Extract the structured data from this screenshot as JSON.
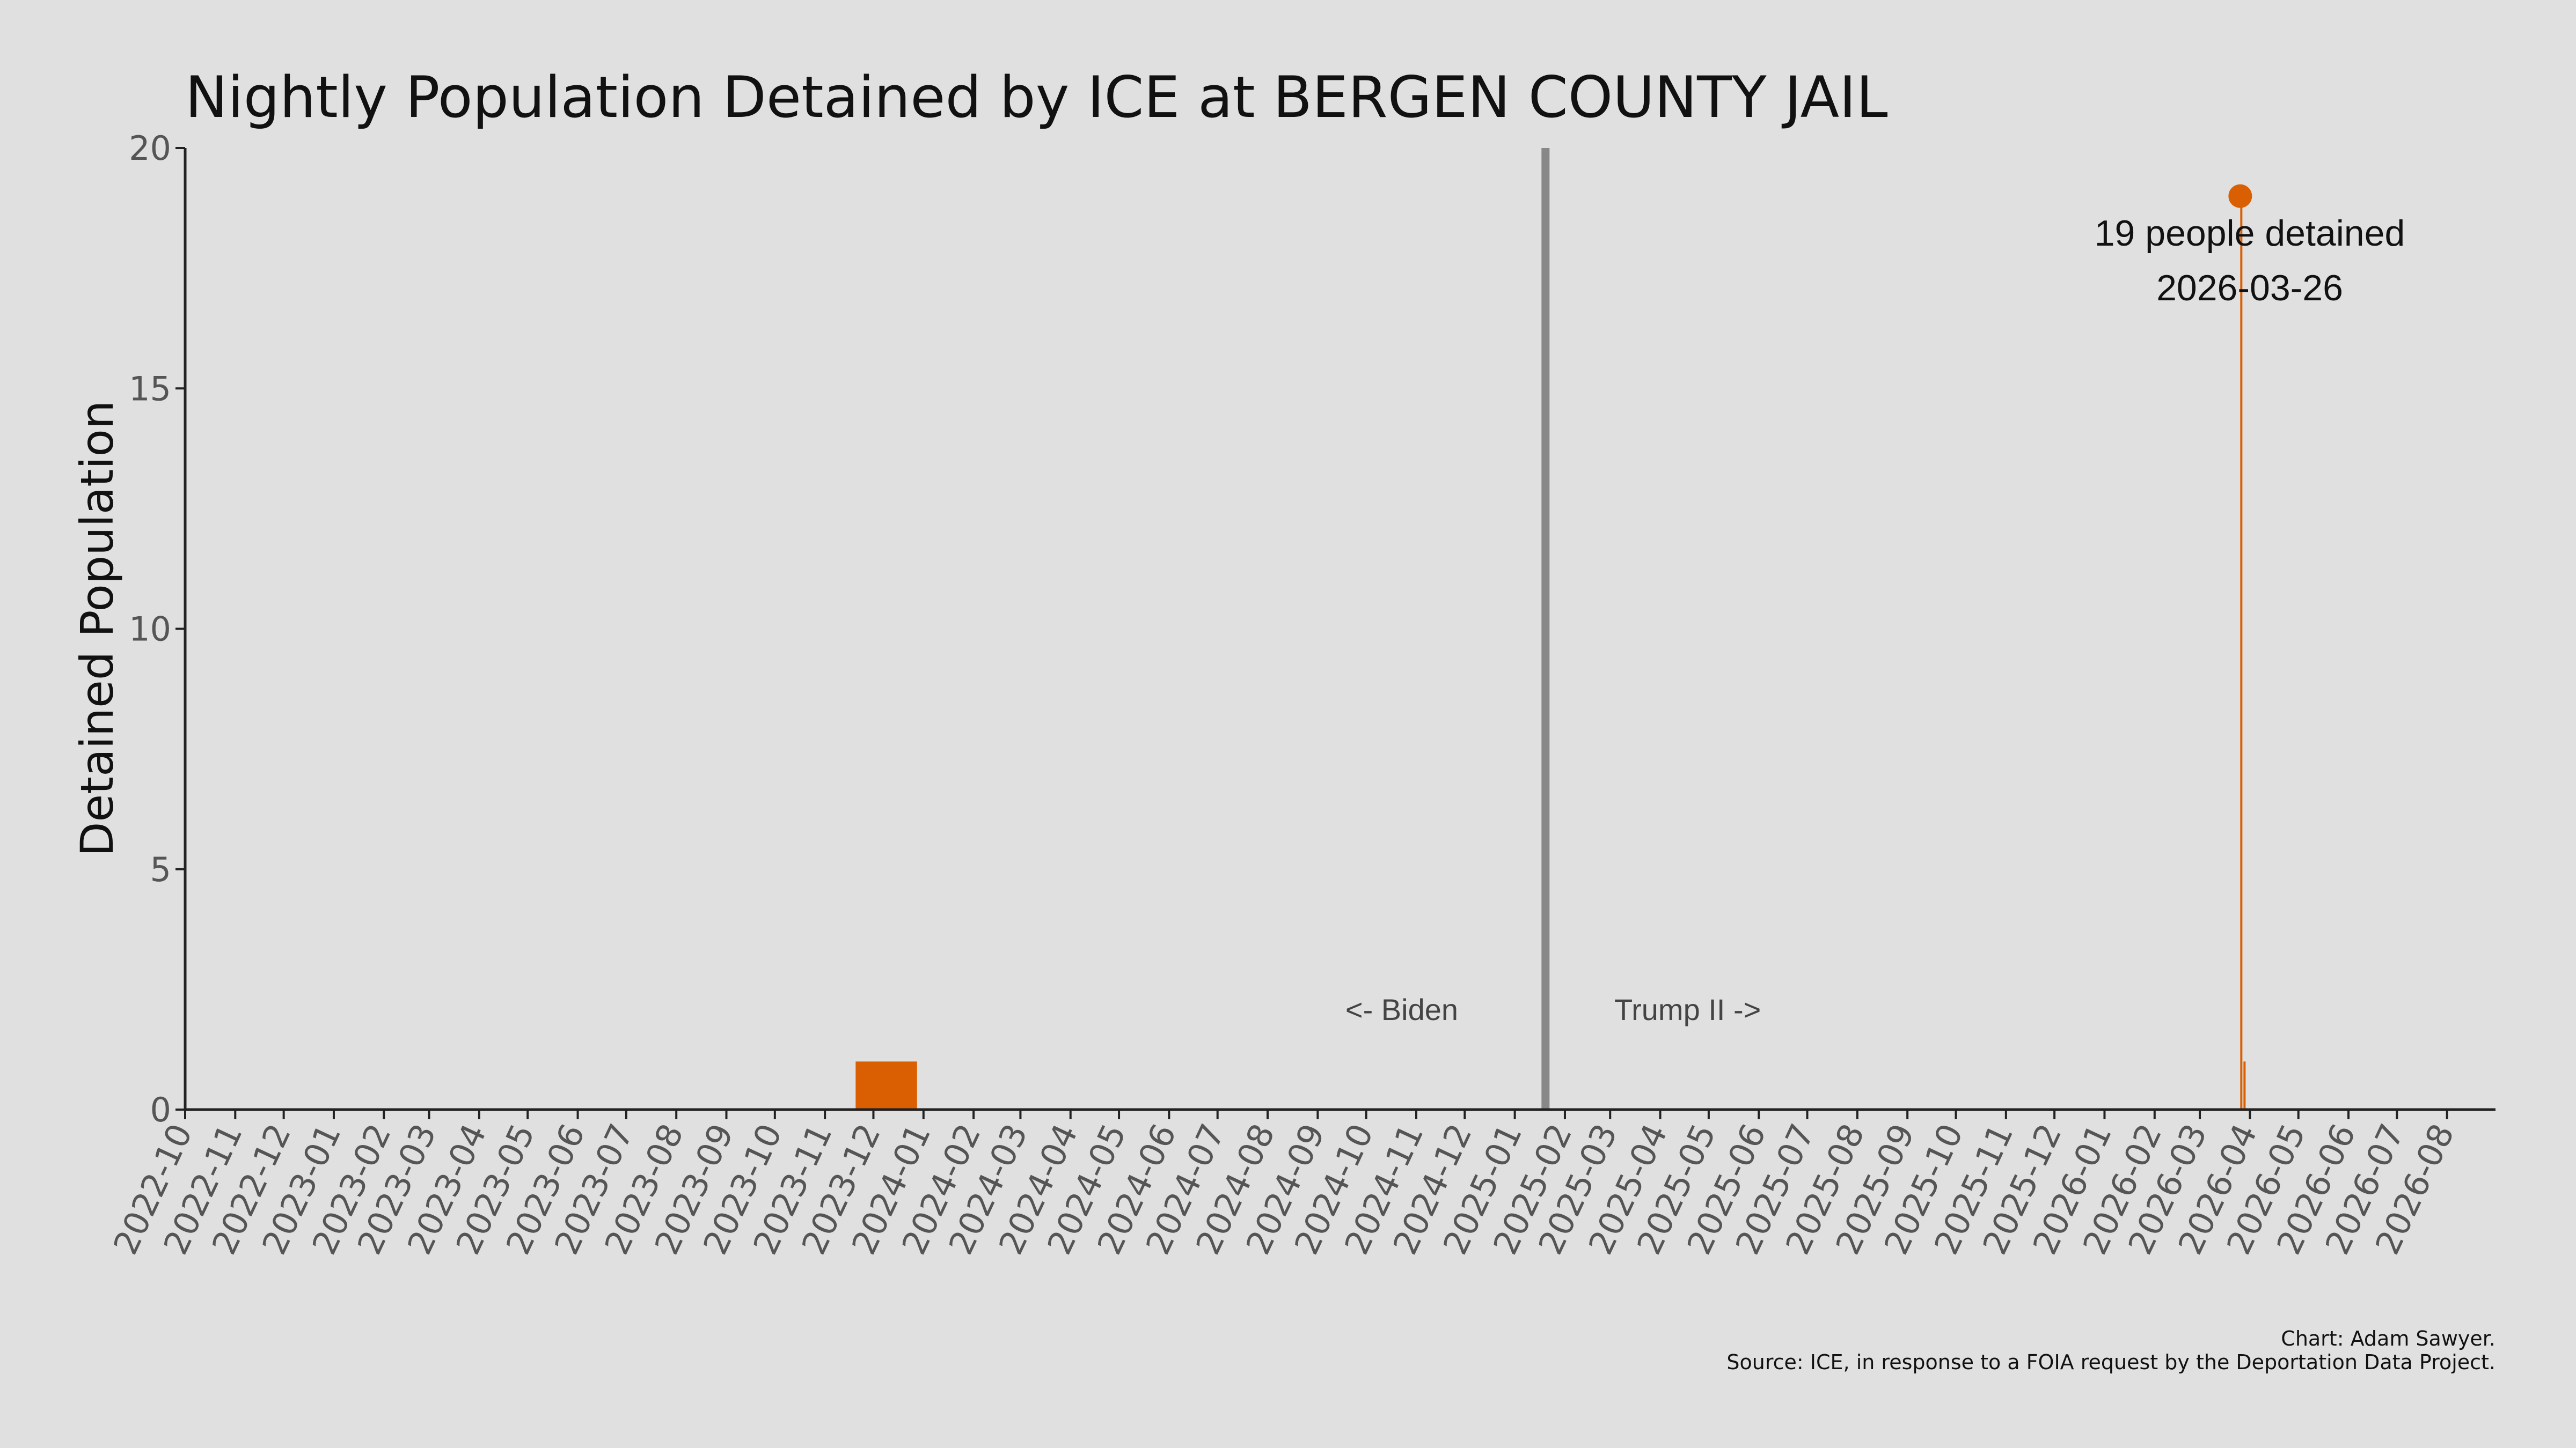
{
  "chart_data": {
    "type": "bar",
    "title": "Nightly Population Detained by ICE at BERGEN COUNTY JAIL",
    "xlabel": "",
    "ylabel": "Detained Population",
    "ylim": [
      0,
      20
    ],
    "yticks": [
      "0",
      "5",
      "10",
      "15",
      "20"
    ],
    "xlim": [
      "2022-10-01",
      "2026-08-31"
    ],
    "x_tick_labels": [
      "2022-10",
      "2022-11",
      "2022-12",
      "2023-01",
      "2023-02",
      "2023-03",
      "2023-04",
      "2023-05",
      "2023-06",
      "2023-07",
      "2023-08",
      "2023-09",
      "2023-10",
      "2023-11",
      "2023-12",
      "2024-01",
      "2024-02",
      "2024-03",
      "2024-04",
      "2024-05",
      "2024-06",
      "2024-07",
      "2024-08",
      "2024-09",
      "2024-10",
      "2024-11",
      "2024-12",
      "2025-01",
      "2025-02",
      "2025-03",
      "2025-04",
      "2025-05",
      "2025-06",
      "2025-07",
      "2025-08",
      "2025-09",
      "2025-10",
      "2025-11",
      "2025-12",
      "2026-01",
      "2026-02",
      "2026-03",
      "2026-04",
      "2026-05",
      "2026-06",
      "2026-07",
      "2026-08"
    ],
    "series": [
      {
        "color": "#d95f02",
        "points": [
          {
            "start": "2023-11-20",
            "end": "2023-12-28",
            "value": 1
          },
          {
            "start": "2026-03-26",
            "end": "2026-03-27",
            "value": 19
          },
          {
            "start": "2026-03-28",
            "end": "2026-03-29",
            "value": 1
          }
        ]
      }
    ],
    "highlight_point": {
      "date": "2026-03-26",
      "value": 19
    },
    "reference_line": {
      "date": "2025-01-20",
      "color": "#888888"
    },
    "grid": false
  },
  "annotations": {
    "peak_line1": "19 people detained",
    "peak_line2": "2026-03-26",
    "biden": "<- Biden",
    "trump": "Trump II ->"
  },
  "caption": {
    "line1": "Chart: Adam Sawyer.",
    "line2": "Source: ICE, in response to a FOIA request by the Deportation Data Project."
  },
  "colors": {
    "background": "#e0e0e0",
    "accent": "#d95f02",
    "reference": "#888888"
  }
}
